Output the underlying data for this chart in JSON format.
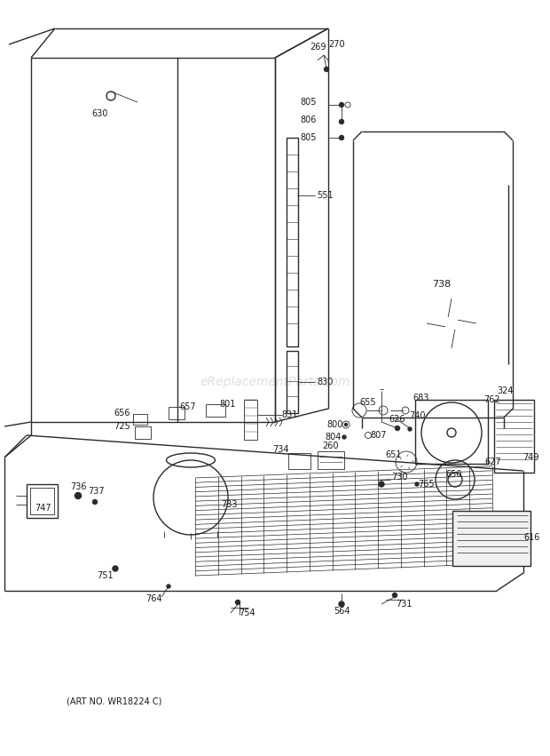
{
  "bg_color": "#ffffff",
  "line_color": "#2a2a2a",
  "text_color": "#1a1a1a",
  "watermark": "eReplacementParts.com",
  "watermark_color": "#c8c8c8",
  "art_no": "(ART NO. WR18224 C)"
}
